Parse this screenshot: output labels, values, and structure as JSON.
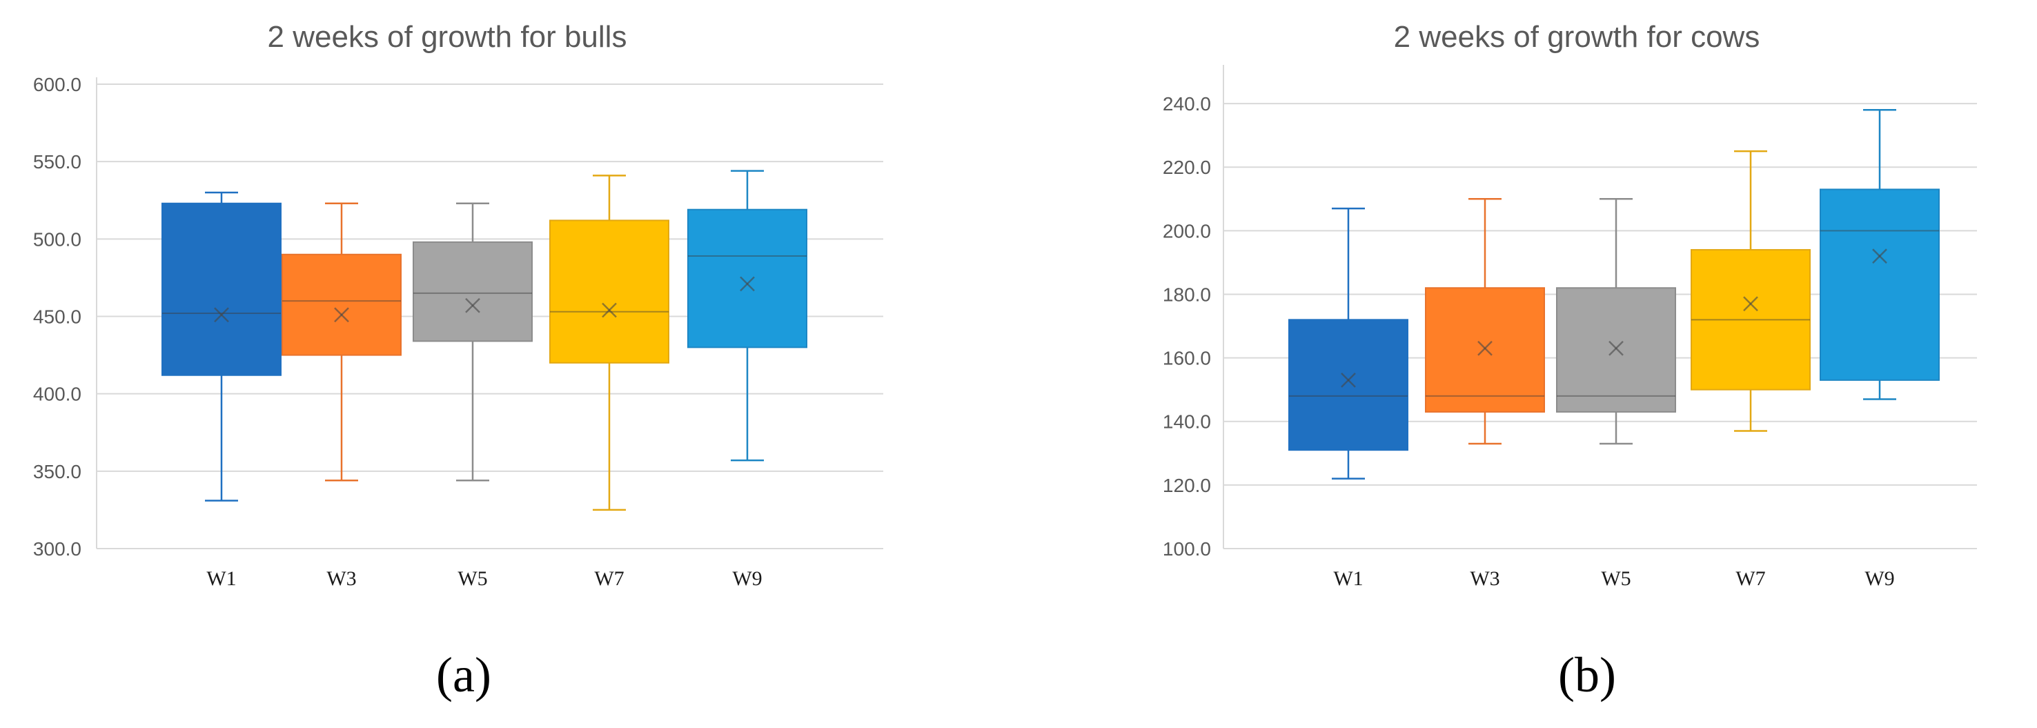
{
  "chart_data": [
    {
      "type": "box",
      "panel_label": "(a)",
      "title": "2 weeks of growth for bulls",
      "xlabel": "",
      "ylabel": "",
      "ylim": [
        300,
        600
      ],
      "ytick_step": 50,
      "ytick_labels": [
        "300.0",
        "350.0",
        "400.0",
        "450.0",
        "500.0",
        "550.0",
        "600.0"
      ],
      "grid": true,
      "categories": [
        "W1",
        "W3",
        "W5",
        "W7",
        "W9"
      ],
      "colors": [
        "#1F70C1",
        "#FF7F27",
        "#A5A5A5",
        "#FFC000",
        "#1C9BDB"
      ],
      "whisker_colors": [
        "#1F70C1",
        "#E8722C",
        "#8C8C8C",
        "#E3A812",
        "#1C86C4"
      ],
      "boxes": [
        {
          "min": 331,
          "q1": 412,
          "median": 452,
          "mean": 451,
          "q3": 523,
          "max": 530
        },
        {
          "min": 344,
          "q1": 425,
          "median": 460,
          "mean": 451,
          "q3": 490,
          "max": 523
        },
        {
          "min": 344,
          "q1": 434,
          "median": 465,
          "mean": 457,
          "q3": 498,
          "max": 523
        },
        {
          "min": 325,
          "q1": 420,
          "median": 453,
          "mean": 454,
          "q3": 512,
          "max": 541
        },
        {
          "min": 357,
          "q1": 430,
          "median": 489,
          "mean": 471,
          "q3": 519,
          "max": 544
        }
      ]
    },
    {
      "type": "box",
      "panel_label": "(b)",
      "title": "2 weeks of growth for cows",
      "xlabel": "",
      "ylabel": "",
      "ylim": [
        100,
        250
      ],
      "ytick_step": 20,
      "ytick_labels": [
        "100.0",
        "120.0",
        "140.0",
        "160.0",
        "180.0",
        "200.0",
        "220.0",
        "240.0"
      ],
      "grid": true,
      "categories": [
        "W1",
        "W3",
        "W5",
        "W7",
        "W9"
      ],
      "colors": [
        "#1F70C1",
        "#FF7F27",
        "#A5A5A5",
        "#FFC000",
        "#1C9BDB"
      ],
      "whisker_colors": [
        "#1F70C1",
        "#E8722C",
        "#8C8C8C",
        "#E3A812",
        "#1C86C4"
      ],
      "boxes": [
        {
          "min": 122,
          "q1": 131,
          "median": 148,
          "mean": 153,
          "q3": 172,
          "max": 207
        },
        {
          "min": 133,
          "q1": 143,
          "median": 148,
          "mean": 163,
          "q3": 182,
          "max": 210
        },
        {
          "min": 133,
          "q1": 143,
          "median": 148,
          "mean": 163,
          "q3": 182,
          "max": 210
        },
        {
          "min": 137,
          "q1": 150,
          "median": 172,
          "mean": 177,
          "q3": 194,
          "max": 225
        },
        {
          "min": 147,
          "q1": 153,
          "median": 200,
          "mean": 192,
          "q3": 213,
          "max": 238
        }
      ]
    }
  ]
}
